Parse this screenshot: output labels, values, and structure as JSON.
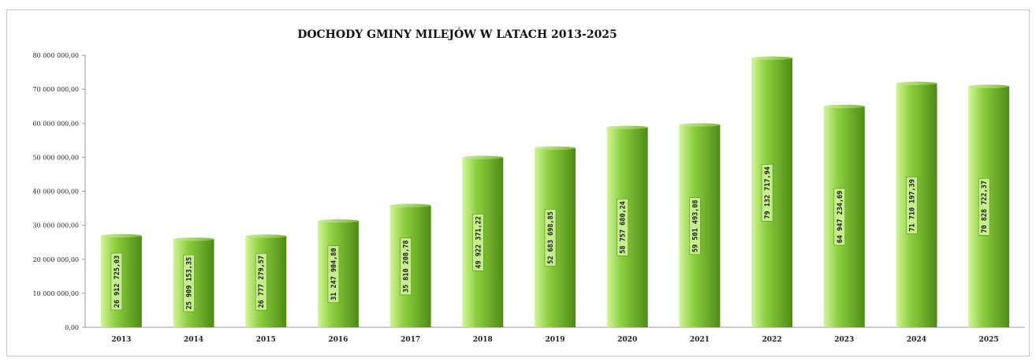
{
  "chart_data": {
    "type": "bar",
    "title": "DOCHODY GMINY  MILEJÓW W LATACH 2013-2025",
    "xlabel": "",
    "ylabel": "",
    "ylim": [
      0,
      80000000
    ],
    "grid": false,
    "legend": "none",
    "bar_color": "#8ccf3e",
    "bar_color_light": "#d4f59a",
    "bar_color_dark": "#4f8a16",
    "y_ticks": [
      0,
      10000000,
      20000000,
      30000000,
      40000000,
      50000000,
      60000000,
      70000000,
      80000000
    ],
    "y_tick_labels": [
      "0,00",
      "10 000 000,00",
      "20 000 000,00",
      "30 000 000,00",
      "40 000 000,00",
      "50 000 000,00",
      "60 000 000,00",
      "70 000 000,00",
      "80 000 000,00"
    ],
    "categories": [
      "2013",
      "2014",
      "2015",
      "2016",
      "2017",
      "2018",
      "2019",
      "2020",
      "2021",
      "2022",
      "2023",
      "2024",
      "2025"
    ],
    "values": [
      26912725.03,
      25909153.35,
      26777279.57,
      31247904.8,
      35810208.78,
      49922371.22,
      52683698.85,
      58757680.24,
      59501493.08,
      79132717.94,
      64947234.69,
      71710197.39,
      70828722.37
    ],
    "data_labels": [
      "26 912 725,03",
      "25 909 153,35",
      "26 777 279,57",
      "31 247 904,80",
      "35 810 208,78",
      "49 922 371,22",
      "52 683 698,85",
      "58 757 680,24",
      "59 501 493,08",
      "79 132 717,94",
      "64 947 234,69",
      "71 710 197,39",
      "70 828 722,37"
    ]
  }
}
